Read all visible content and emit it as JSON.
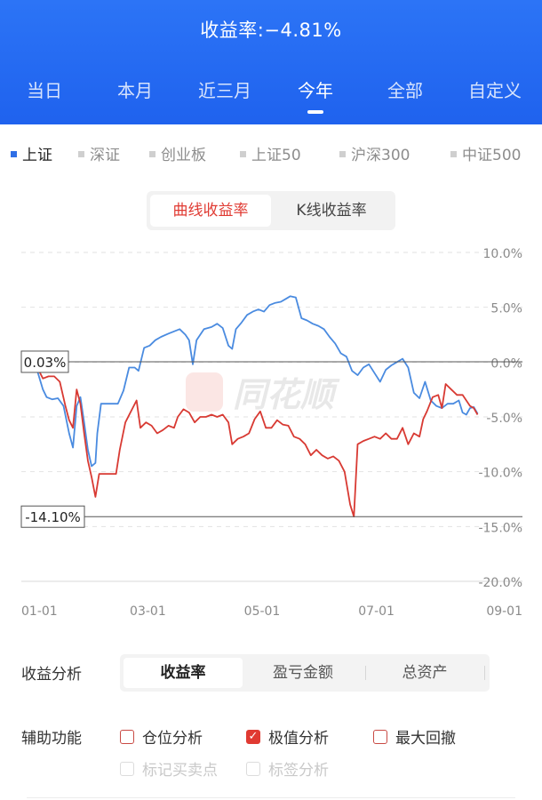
{
  "header": {
    "title": "收益率:−4.81%"
  },
  "period_tabs": [
    {
      "label": "当日"
    },
    {
      "label": "本月"
    },
    {
      "label": "近三月"
    },
    {
      "label": "今年"
    },
    {
      "label": "全部"
    },
    {
      "label": "自定义"
    }
  ],
  "active_period": 3,
  "index_tabs": [
    {
      "label": "上证"
    },
    {
      "label": "深证"
    },
    {
      "label": "创业板"
    },
    {
      "label": "上证50"
    },
    {
      "label": "沪深300"
    },
    {
      "label": "中证500"
    }
  ],
  "active_index": 0,
  "chart_mode": {
    "curve_label": "曲线收益率",
    "kline_label": "K线收益率",
    "active": "curve_label"
  },
  "watermark": "同花顺",
  "colors": {
    "header_blue": "#2c74f6",
    "series_blue": "#4a8be0",
    "series_red": "#d83a33",
    "accent_red": "#e03a32"
  },
  "chart_data": {
    "type": "line",
    "ylim": [
      -20,
      10
    ],
    "y_ticks": [
      "10.0%",
      "5.0%",
      "0.0%",
      "-5.0%",
      "-10.0%",
      "-15.0%",
      "-20.0%"
    ],
    "y_tick_values": [
      10,
      5,
      0,
      -5,
      -10,
      -15,
      -20
    ],
    "x_ticks": [
      "01-01",
      "03-01",
      "05-01",
      "07-01",
      "09-01"
    ],
    "x_tick_positions": [
      0,
      59,
      120,
      181,
      243
    ],
    "x_range": [
      0,
      240
    ],
    "annotations": [
      {
        "label": "0.03%",
        "value": 0.03
      },
      {
        "label": "-14.10%",
        "value": -14.1
      }
    ],
    "series": [
      {
        "color": "#4a8be0",
        "points": [
          [
            0,
            -0.8
          ],
          [
            3,
            -2.5
          ],
          [
            5,
            -3.2
          ],
          [
            8,
            -3.4
          ],
          [
            11,
            -3.3
          ],
          [
            14,
            -4.0
          ],
          [
            17,
            -6.5
          ],
          [
            19,
            -7.8
          ],
          [
            21,
            -4.0
          ],
          [
            23,
            -3.2
          ],
          [
            25,
            -5.5
          ],
          [
            27,
            -8.0
          ],
          [
            29,
            -9.5
          ],
          [
            31,
            -9.2
          ],
          [
            32,
            -6.5
          ],
          [
            34,
            -3.8
          ],
          [
            37,
            -3.8
          ],
          [
            41,
            -3.8
          ],
          [
            43,
            -3.8
          ],
          [
            46,
            -2.6
          ],
          [
            49,
            -0.5
          ],
          [
            52,
            -0.5
          ],
          [
            54,
            -0.8
          ],
          [
            57,
            1.3
          ],
          [
            60,
            1.5
          ],
          [
            63,
            2.0
          ],
          [
            66,
            2.3
          ],
          [
            70,
            2.6
          ],
          [
            73,
            2.8
          ],
          [
            76,
            3.0
          ],
          [
            79,
            2.5
          ],
          [
            81,
            2.0
          ],
          [
            83,
            -0.2
          ],
          [
            85,
            2.0
          ],
          [
            89,
            3.0
          ],
          [
            93,
            3.2
          ],
          [
            96,
            3.5
          ],
          [
            99,
            3.1
          ],
          [
            102,
            1.5
          ],
          [
            104,
            1.2
          ],
          [
            106,
            3.0
          ],
          [
            109,
            3.6
          ],
          [
            112,
            4.3
          ],
          [
            115,
            4.6
          ],
          [
            118,
            4.8
          ],
          [
            121,
            4.6
          ],
          [
            124,
            5.2
          ],
          [
            127,
            5.4
          ],
          [
            130,
            5.5
          ],
          [
            133,
            5.8
          ],
          [
            135,
            6.0
          ],
          [
            138,
            5.9
          ],
          [
            141,
            4.0
          ],
          [
            144,
            3.8
          ],
          [
            147,
            3.5
          ],
          [
            150,
            3.3
          ],
          [
            153,
            3.0
          ],
          [
            156,
            2.3
          ],
          [
            159,
            1.7
          ],
          [
            162,
            0.8
          ],
          [
            165,
            0.5
          ],
          [
            168,
            -0.8
          ],
          [
            171,
            -1.2
          ],
          [
            174,
            -0.5
          ],
          [
            177,
            -0.2
          ],
          [
            180,
            -1.0
          ],
          [
            183,
            -1.8
          ],
          [
            186,
            -0.7
          ],
          [
            189,
            -0.3
          ],
          [
            192,
            0.0
          ],
          [
            195,
            0.3
          ],
          [
            198,
            -0.5
          ],
          [
            201,
            -2.8
          ],
          [
            204,
            -3.3
          ],
          [
            207,
            -1.8
          ],
          [
            210,
            -3.5
          ],
          [
            213,
            -4.0
          ],
          [
            216,
            -4.2
          ],
          [
            219,
            -3.8
          ],
          [
            222,
            -3.8
          ],
          [
            225,
            -3.5
          ],
          [
            227,
            -4.6
          ],
          [
            229,
            -4.8
          ],
          [
            231,
            -4.2
          ],
          [
            233,
            -4.1
          ],
          [
            235,
            -4.7
          ]
        ]
      },
      {
        "color": "#d83a33",
        "points": [
          [
            0,
            -0.5
          ],
          [
            3,
            -1.5
          ],
          [
            6,
            -1.3
          ],
          [
            9,
            -1.3
          ],
          [
            12,
            -1.8
          ],
          [
            15,
            -4.0
          ],
          [
            17,
            -5.3
          ],
          [
            19,
            -6.0
          ],
          [
            21,
            -2.5
          ],
          [
            23,
            -3.8
          ],
          [
            25,
            -6.5
          ],
          [
            27,
            -9.0
          ],
          [
            29,
            -10.5
          ],
          [
            31,
            -12.3
          ],
          [
            33,
            -10.2
          ],
          [
            36,
            -10.2
          ],
          [
            39,
            -10.2
          ],
          [
            42,
            -10.2
          ],
          [
            44,
            -8.0
          ],
          [
            47,
            -5.5
          ],
          [
            50,
            -4.5
          ],
          [
            53,
            -3.5
          ],
          [
            55,
            -6.0
          ],
          [
            58,
            -5.5
          ],
          [
            61,
            -5.8
          ],
          [
            64,
            -6.5
          ],
          [
            67,
            -6.2
          ],
          [
            70,
            -5.8
          ],
          [
            73,
            -6.0
          ],
          [
            75,
            -5.0
          ],
          [
            78,
            -4.3
          ],
          [
            81,
            -4.6
          ],
          [
            84,
            -5.5
          ],
          [
            87,
            -5.0
          ],
          [
            90,
            -5.0
          ],
          [
            93,
            -4.8
          ],
          [
            96,
            -5.0
          ],
          [
            99,
            -4.8
          ],
          [
            102,
            -5.5
          ],
          [
            104,
            -7.5
          ],
          [
            107,
            -7.0
          ],
          [
            110,
            -6.8
          ],
          [
            113,
            -6.5
          ],
          [
            116,
            -5.2
          ],
          [
            119,
            -4.5
          ],
          [
            122,
            -6.0
          ],
          [
            125,
            -6.0
          ],
          [
            128,
            -5.3
          ],
          [
            131,
            -5.7
          ],
          [
            134,
            -5.8
          ],
          [
            137,
            -6.8
          ],
          [
            140,
            -7.0
          ],
          [
            143,
            -7.5
          ],
          [
            146,
            -8.5
          ],
          [
            149,
            -8.0
          ],
          [
            152,
            -8.5
          ],
          [
            155,
            -8.8
          ],
          [
            158,
            -8.6
          ],
          [
            161,
            -9.0
          ],
          [
            164,
            -10.0
          ],
          [
            167,
            -13.0
          ],
          [
            169,
            -14.1
          ],
          [
            171,
            -7.5
          ],
          [
            174,
            -7.2
          ],
          [
            177,
            -7.0
          ],
          [
            180,
            -6.8
          ],
          [
            183,
            -7.0
          ],
          [
            186,
            -6.5
          ],
          [
            189,
            -7.0
          ],
          [
            192,
            -7.0
          ],
          [
            195,
            -6.0
          ],
          [
            198,
            -7.5
          ],
          [
            201,
            -6.5
          ],
          [
            204,
            -6.8
          ],
          [
            206,
            -5.2
          ],
          [
            208,
            -4.5
          ],
          [
            211,
            -3.2
          ],
          [
            214,
            -3.0
          ],
          [
            216,
            -4.2
          ],
          [
            218,
            -2.0
          ],
          [
            221,
            -2.5
          ],
          [
            224,
            -3.0
          ],
          [
            227,
            -3.0
          ],
          [
            229,
            -3.5
          ],
          [
            231,
            -4.0
          ],
          [
            233,
            -4.2
          ],
          [
            235,
            -4.8
          ]
        ]
      }
    ]
  },
  "analysis": {
    "label": "收益分析",
    "tabs": [
      {
        "label": "收益率"
      },
      {
        "label": "盈亏金额"
      },
      {
        "label": "总资产"
      }
    ]
  },
  "aux": {
    "label": "辅助功能",
    "options": [
      {
        "label": "仓位分析",
        "checked": false,
        "enabled": true
      },
      {
        "label": "极值分析",
        "checked": true,
        "enabled": true
      },
      {
        "label": "最大回撤",
        "checked": false,
        "enabled": true
      },
      {
        "label": "标记买卖点",
        "checked": false,
        "enabled": false
      },
      {
        "label": "标签分析",
        "checked": false,
        "enabled": false
      }
    ]
  }
}
